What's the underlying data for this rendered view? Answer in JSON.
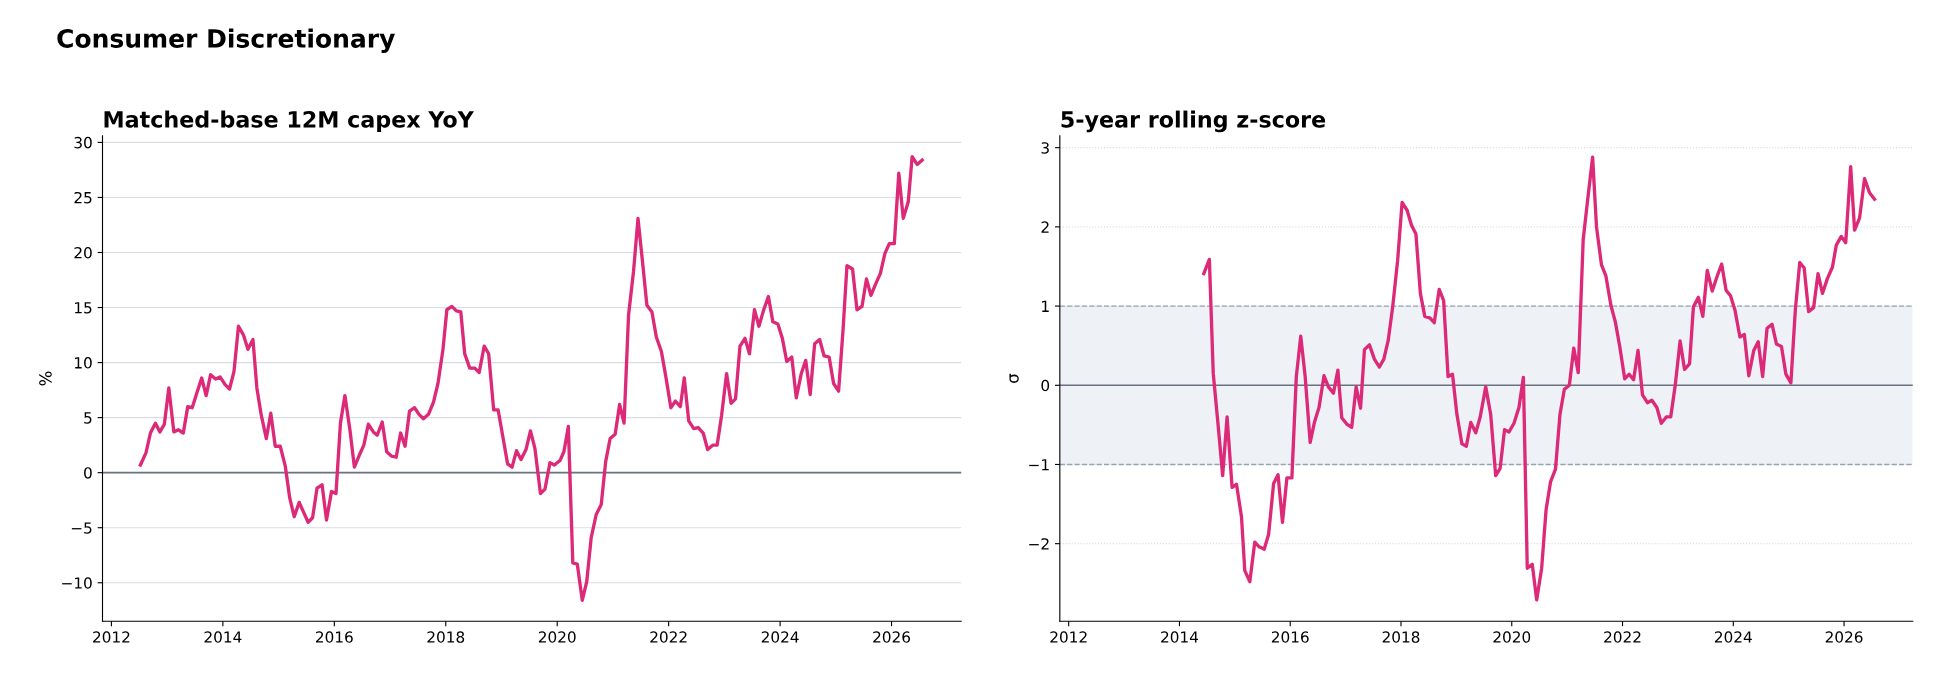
{
  "chart_data": [
    {
      "type": "line",
      "title": "Matched-base 12M capex YoY",
      "ylabel": "%",
      "annotations": [
        "Consumer Discretionary"
      ],
      "xlim": [
        2011.84,
        2027.25
      ],
      "xticks": [
        2012,
        2014,
        2016,
        2018,
        2020,
        2022,
        2024,
        2026
      ],
      "ylim": [
        -13.5,
        30.6
      ],
      "yticks": [
        {
          "value": -10,
          "label": "−10"
        },
        {
          "value": -5,
          "label": "−5"
        },
        0,
        5,
        10,
        15,
        20,
        25,
        30
      ],
      "grid": "y",
      "marker": "none",
      "line_style": "solid",
      "ref_lines": [
        {
          "axis": "y",
          "value": 0,
          "color": "#6b7280"
        }
      ],
      "series": [
        {
          "color": "#dc2a78",
          "x": [
            2012.52,
            2012.62,
            2012.7,
            2012.79,
            2012.87,
            2012.95,
            2013.03,
            2013.12,
            2013.2,
            2013.29,
            2013.37,
            2013.45,
            2013.53,
            2013.62,
            2013.7,
            2013.78,
            2013.87,
            2013.95,
            2014.04,
            2014.12,
            2014.2,
            2014.28,
            2014.37,
            2014.45,
            2014.54,
            2014.61,
            2014.69,
            2014.78,
            2014.86,
            2014.94,
            2015.03,
            2015.12,
            2015.2,
            2015.28,
            2015.37,
            2015.44,
            2015.53,
            2015.61,
            2015.69,
            2015.78,
            2015.86,
            2015.95,
            2016.03,
            2016.11,
            2016.19,
            2016.28,
            2016.36,
            2016.45,
            2016.53,
            2016.61,
            2016.7,
            2016.77,
            2016.86,
            2016.94,
            2017.03,
            2017.11,
            2017.19,
            2017.27,
            2017.35,
            2017.44,
            2017.52,
            2017.6,
            2017.69,
            2017.78,
            2017.86,
            2017.95,
            2018.02,
            2018.11,
            2018.19,
            2018.27,
            2018.34,
            2018.43,
            2018.52,
            2018.6,
            2018.69,
            2018.77,
            2018.86,
            2018.94,
            2019.03,
            2019.11,
            2019.19,
            2019.27,
            2019.35,
            2019.44,
            2019.52,
            2019.6,
            2019.7,
            2019.78,
            2019.87,
            2019.95,
            2020.05,
            2020.12,
            2020.2,
            2020.28,
            2020.36,
            2020.45,
            2020.53,
            2020.61,
            2020.7,
            2020.79,
            2020.87,
            2020.95,
            2021.04,
            2021.12,
            2021.2,
            2021.28,
            2021.37,
            2021.45,
            2021.53,
            2021.61,
            2021.7,
            2021.78,
            2021.87,
            2021.95,
            2022.04,
            2022.12,
            2022.21,
            2022.28,
            2022.36,
            2022.45,
            2022.53,
            2022.62,
            2022.7,
            2022.79,
            2022.87,
            2022.95,
            2023.04,
            2023.12,
            2023.2,
            2023.28,
            2023.37,
            2023.45,
            2023.54,
            2023.62,
            2023.7,
            2023.79,
            2023.87,
            2023.96,
            2024.04,
            2024.12,
            2024.21,
            2024.29,
            2024.38,
            2024.46,
            2024.54,
            2024.62,
            2024.71,
            2024.79,
            2024.88,
            2024.96,
            2025.05,
            2025.13,
            2025.2,
            2025.3,
            2025.38,
            2025.47,
            2025.55,
            2025.63,
            2025.72,
            2025.8,
            2025.88,
            2025.96,
            2026.05,
            2026.13,
            2026.21,
            2026.3,
            2026.37,
            2026.46,
            2026.55
          ],
          "values": [
            0.7,
            1.8,
            3.6,
            4.5,
            3.7,
            4.4,
            7.7,
            3.7,
            3.9,
            3.6,
            6.0,
            5.9,
            7.2,
            8.6,
            7.0,
            8.9,
            8.5,
            8.7,
            8.0,
            7.6,
            9.2,
            13.3,
            12.5,
            11.2,
            12.1,
            7.7,
            5.2,
            3.1,
            5.4,
            2.4,
            2.4,
            0.6,
            -2.3,
            -4.0,
            -2.7,
            -3.5,
            -4.5,
            -4.1,
            -1.4,
            -1.1,
            -4.3,
            -1.7,
            -1.9,
            4.5,
            7.0,
            3.9,
            0.5,
            1.6,
            2.5,
            4.4,
            3.7,
            3.4,
            4.6,
            1.9,
            1.5,
            1.4,
            3.6,
            2.4,
            5.6,
            5.9,
            5.3,
            4.9,
            5.3,
            6.4,
            8.1,
            11.2,
            14.8,
            15.1,
            14.7,
            14.6,
            10.8,
            9.5,
            9.5,
            9.1,
            11.5,
            10.8,
            5.7,
            5.7,
            3.1,
            0.8,
            0.5,
            2.0,
            1.2,
            2.1,
            3.8,
            2.2,
            -1.9,
            -1.5,
            0.9,
            0.7,
            1.1,
            1.9,
            4.2,
            -8.2,
            -8.3,
            -11.6,
            -9.9,
            -5.9,
            -3.8,
            -2.9,
            1.0,
            3.1,
            3.5,
            6.2,
            4.5,
            14.3,
            18.3,
            23.1,
            19.2,
            15.2,
            14.6,
            12.3,
            11.0,
            8.7,
            5.9,
            6.5,
            6.0,
            8.6,
            4.7,
            4.0,
            4.1,
            3.6,
            2.1,
            2.5,
            2.5,
            5.2,
            9.0,
            6.3,
            6.7,
            11.5,
            12.2,
            10.8,
            14.8,
            13.3,
            14.7,
            16.0,
            13.7,
            13.5,
            12.2,
            10.1,
            10.5,
            6.8,
            9.0,
            10.2,
            7.1,
            11.7,
            12.1,
            10.6,
            10.5,
            8.1,
            7.4,
            13.0,
            18.8,
            18.5,
            14.8,
            15.1,
            17.6,
            16.1,
            17.2,
            18.1,
            19.9,
            20.8,
            20.8,
            27.2,
            23.1,
            24.6,
            28.7,
            28.0,
            28.4
          ]
        }
      ]
    },
    {
      "type": "line",
      "title": "5-year rolling z-score",
      "ylabel": "σ",
      "xlim": [
        2011.84,
        2027.24
      ],
      "xticks": [
        2012,
        2014,
        2016,
        2018,
        2020,
        2022,
        2024,
        2026
      ],
      "ylim": [
        -2.98,
        3.15
      ],
      "yticks": [
        {
          "value": -2,
          "label": "−2"
        },
        {
          "value": -1,
          "label": "−1"
        },
        0,
        1,
        2,
        3
      ],
      "grid": "y",
      "marker": "none",
      "line_style": "solid",
      "ref_lines": [
        {
          "axis": "y",
          "value": 0,
          "color": "#6b7280"
        }
      ],
      "bands": [
        {
          "axis": "y",
          "from": -1,
          "to": 1,
          "color": "#eef2f7"
        }
      ],
      "series": [
        {
          "color": "#dc2a78",
          "x": [
            2014.44,
            2014.54,
            2014.61,
            2014.7,
            2014.78,
            2014.86,
            2014.95,
            2015.03,
            2015.12,
            2015.18,
            2015.27,
            2015.36,
            2015.44,
            2015.53,
            2015.61,
            2015.7,
            2015.78,
            2015.86,
            2015.94,
            2016.03,
            2016.11,
            2016.19,
            2016.27,
            2016.36,
            2016.44,
            2016.52,
            2016.61,
            2016.69,
            2016.78,
            2016.86,
            2016.93,
            2017.02,
            2017.11,
            2017.19,
            2017.27,
            2017.34,
            2017.43,
            2017.52,
            2017.61,
            2017.69,
            2017.77,
            2017.85,
            2017.94,
            2018.02,
            2018.11,
            2018.19,
            2018.27,
            2018.35,
            2018.43,
            2018.52,
            2018.6,
            2018.69,
            2018.77,
            2018.85,
            2018.93,
            2019.01,
            2019.1,
            2019.18,
            2019.26,
            2019.35,
            2019.43,
            2019.53,
            2019.62,
            2019.71,
            2019.79,
            2019.87,
            2019.95,
            2020.04,
            2020.13,
            2020.21,
            2020.28,
            2020.37,
            2020.45,
            2020.54,
            2020.62,
            2020.7,
            2020.79,
            2020.87,
            2020.95,
            2021.04,
            2021.12,
            2021.2,
            2021.29,
            2021.37,
            2021.46,
            2021.53,
            2021.62,
            2021.7,
            2021.79,
            2021.87,
            2021.95,
            2022.04,
            2022.12,
            2022.2,
            2022.28,
            2022.36,
            2022.45,
            2022.53,
            2022.62,
            2022.7,
            2022.79,
            2022.87,
            2022.95,
            2023.04,
            2023.12,
            2023.21,
            2023.28,
            2023.37,
            2023.45,
            2023.53,
            2023.62,
            2023.71,
            2023.79,
            2023.87,
            2023.95,
            2024.03,
            2024.12,
            2024.2,
            2024.28,
            2024.37,
            2024.45,
            2024.53,
            2024.61,
            2024.7,
            2024.78,
            2024.87,
            2024.95,
            2025.04,
            2025.12,
            2025.2,
            2025.28,
            2025.36,
            2025.45,
            2025.53,
            2025.61,
            2025.7,
            2025.79,
            2025.86,
            2025.95,
            2026.03,
            2026.12,
            2026.19,
            2026.28,
            2026.37,
            2026.46,
            2026.55
          ],
          "values": [
            1.41,
            1.59,
            0.15,
            -0.52,
            -1.14,
            -0.4,
            -1.29,
            -1.25,
            -1.66,
            -2.34,
            -2.48,
            -1.98,
            -2.04,
            -2.07,
            -1.88,
            -1.24,
            -1.13,
            -1.73,
            -1.17,
            -1.17,
            0.11,
            0.62,
            0.11,
            -0.72,
            -0.46,
            -0.28,
            0.12,
            -0.02,
            -0.1,
            0.19,
            -0.41,
            -0.49,
            -0.53,
            -0.02,
            -0.29,
            0.45,
            0.51,
            0.33,
            0.23,
            0.33,
            0.57,
            0.99,
            1.58,
            2.31,
            2.21,
            2.02,
            1.91,
            1.16,
            0.87,
            0.85,
            0.79,
            1.21,
            1.07,
            0.11,
            0.14,
            -0.37,
            -0.74,
            -0.77,
            -0.47,
            -0.6,
            -0.4,
            -0.02,
            -0.37,
            -1.14,
            -1.05,
            -0.56,
            -0.59,
            -0.48,
            -0.28,
            0.1,
            -2.31,
            -2.26,
            -2.71,
            -2.31,
            -1.57,
            -1.22,
            -1.06,
            -0.37,
            -0.05,
            0.0,
            0.47,
            0.16,
            1.84,
            2.34,
            2.88,
            2.0,
            1.52,
            1.38,
            1.01,
            0.8,
            0.49,
            0.08,
            0.14,
            0.07,
            0.44,
            -0.12,
            -0.22,
            -0.19,
            -0.28,
            -0.48,
            -0.4,
            -0.4,
            -0.01,
            0.56,
            0.2,
            0.27,
            0.99,
            1.11,
            0.87,
            1.45,
            1.19,
            1.38,
            1.53,
            1.2,
            1.13,
            0.95,
            0.61,
            0.64,
            0.12,
            0.44,
            0.55,
            0.11,
            0.72,
            0.77,
            0.52,
            0.49,
            0.14,
            0.03,
            0.95,
            1.55,
            1.48,
            0.93,
            0.98,
            1.41,
            1.16,
            1.35,
            1.49,
            1.77,
            1.88,
            1.8,
            2.76,
            1.96,
            2.11,
            2.61,
            2.43,
            2.35
          ]
        }
      ]
    }
  ]
}
